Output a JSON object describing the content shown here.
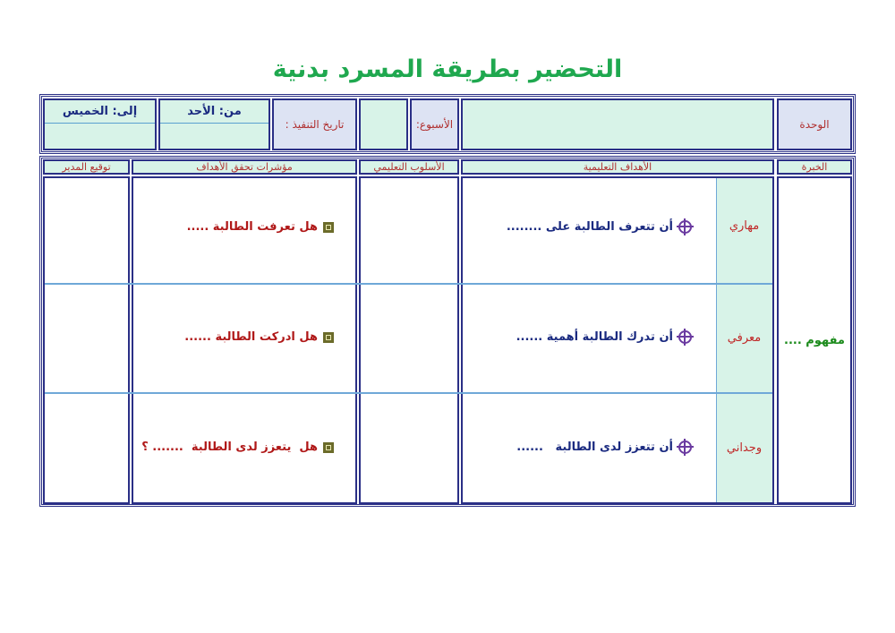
{
  "title": "التحضير بطريقة المسرد بدنية",
  "info": {
    "unit_label": "الوحدة",
    "unit_value": "",
    "week_label": "الأسبوع:",
    "week_value": "",
    "date_label": "تاريخ التنفيذ :",
    "from_label": "من: الأحد",
    "from_value": "",
    "to_label": "إلى: الخميس",
    "to_value": ""
  },
  "headers": {
    "experience": "الخبرة",
    "objectives": "الأهداف التعليمية",
    "method": "الأسلوب التعليمي",
    "indicators": "مؤشرات تحقق الأهداف",
    "signature": "توقيع المدير"
  },
  "experience": "مفهوم ....",
  "rows": [
    {
      "domain": "مهاري",
      "objective": "أن تتعرف الطالبة على ........",
      "indicator": "هل تعرفت الطالبة ....."
    },
    {
      "domain": "معرفي",
      "objective": "أن تدرك الطالبة أهمية ......",
      "indicator": "هل ادركت الطالبة ......"
    },
    {
      "domain": "وجداني",
      "objective": "أن تتعزز لدى الطالبة   ......",
      "indicator": "هل  يتعزز لدى الطالبة  ....... ؟"
    }
  ],
  "colors": {
    "title": "#1fa84f",
    "border": "#2a2f86",
    "lavender": "#dde3f3",
    "mint": "#d8f3e8",
    "label_red": "#b03030",
    "objective_blue": "#1a2a80"
  },
  "icons": {
    "objective": "crosshair-icon",
    "indicator": "square-bullet-icon"
  }
}
